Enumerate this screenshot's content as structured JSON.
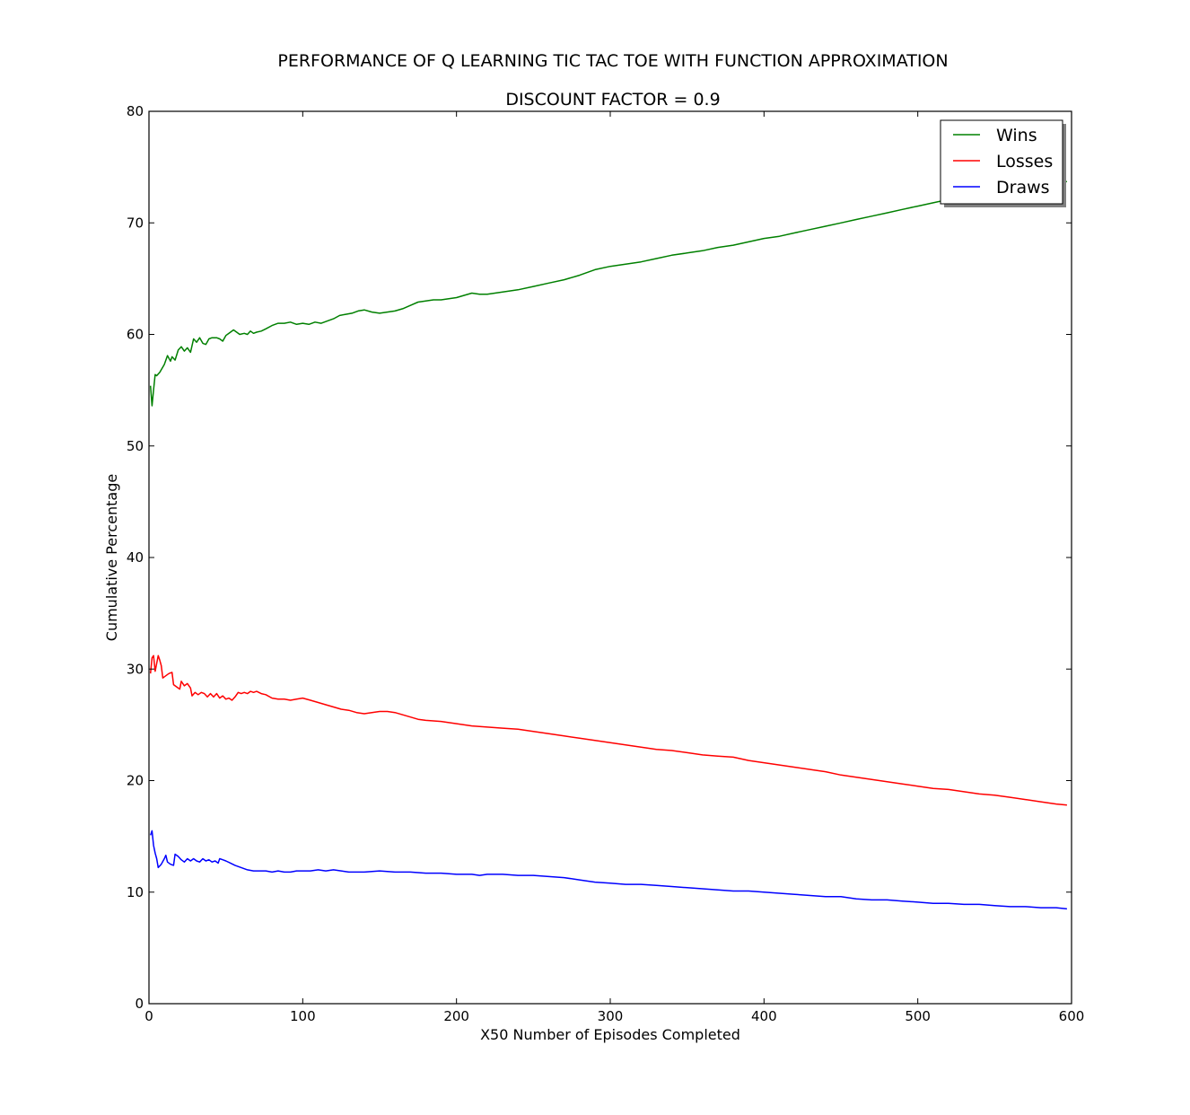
{
  "chart_data": {
    "type": "line",
    "title": "PERFORMANCE OF Q LEARNING TIC TAC TOE WITH FUNCTION APPROXIMATION",
    "subtitle": "DISCOUNT FACTOR =  0.9",
    "xlabel": "X50 Number of Episodes Completed",
    "ylabel": "Cumulative Percentage",
    "xlim": [
      0,
      600
    ],
    "ylim": [
      0,
      80
    ],
    "xticks": [
      0,
      100,
      200,
      300,
      400,
      500,
      600
    ],
    "yticks": [
      0,
      10,
      20,
      30,
      40,
      50,
      60,
      70,
      80
    ],
    "grid": false,
    "legend": "top-right",
    "series": [
      {
        "name": "Wins",
        "color": "#008000",
        "points": [
          [
            1,
            55.4
          ],
          [
            2,
            53.6
          ],
          [
            3,
            55.0
          ],
          [
            4,
            56.4
          ],
          [
            5,
            56.3
          ],
          [
            7,
            56.6
          ],
          [
            10,
            57.3
          ],
          [
            12,
            58.1
          ],
          [
            14,
            57.6
          ],
          [
            15,
            58.0
          ],
          [
            17,
            57.7
          ],
          [
            19,
            58.6
          ],
          [
            21,
            58.9
          ],
          [
            23,
            58.5
          ],
          [
            25,
            58.8
          ],
          [
            27,
            58.4
          ],
          [
            29,
            59.6
          ],
          [
            31,
            59.3
          ],
          [
            33,
            59.7
          ],
          [
            35,
            59.2
          ],
          [
            37,
            59.1
          ],
          [
            39,
            59.6
          ],
          [
            41,
            59.7
          ],
          [
            44,
            59.7
          ],
          [
            46,
            59.6
          ],
          [
            48,
            59.4
          ],
          [
            50,
            59.9
          ],
          [
            53,
            60.2
          ],
          [
            55,
            60.4
          ],
          [
            57,
            60.2
          ],
          [
            59,
            60.0
          ],
          [
            62,
            60.1
          ],
          [
            64,
            60.0
          ],
          [
            66,
            60.3
          ],
          [
            68,
            60.1
          ],
          [
            70,
            60.2
          ],
          [
            73,
            60.3
          ],
          [
            76,
            60.5
          ],
          [
            80,
            60.8
          ],
          [
            84,
            61.0
          ],
          [
            88,
            61.0
          ],
          [
            92,
            61.1
          ],
          [
            96,
            60.9
          ],
          [
            100,
            61.0
          ],
          [
            104,
            60.9
          ],
          [
            108,
            61.1
          ],
          [
            112,
            61.0
          ],
          [
            116,
            61.2
          ],
          [
            120,
            61.4
          ],
          [
            124,
            61.7
          ],
          [
            128,
            61.8
          ],
          [
            132,
            61.9
          ],
          [
            136,
            62.1
          ],
          [
            140,
            62.2
          ],
          [
            145,
            62.0
          ],
          [
            150,
            61.9
          ],
          [
            155,
            62.0
          ],
          [
            160,
            62.1
          ],
          [
            165,
            62.3
          ],
          [
            170,
            62.6
          ],
          [
            175,
            62.9
          ],
          [
            180,
            63.0
          ],
          [
            185,
            63.1
          ],
          [
            190,
            63.1
          ],
          [
            195,
            63.2
          ],
          [
            200,
            63.3
          ],
          [
            205,
            63.5
          ],
          [
            210,
            63.7
          ],
          [
            215,
            63.6
          ],
          [
            220,
            63.6
          ],
          [
            225,
            63.7
          ],
          [
            230,
            63.8
          ],
          [
            240,
            64.0
          ],
          [
            250,
            64.3
          ],
          [
            260,
            64.6
          ],
          [
            270,
            64.9
          ],
          [
            280,
            65.3
          ],
          [
            290,
            65.8
          ],
          [
            300,
            66.1
          ],
          [
            310,
            66.3
          ],
          [
            320,
            66.5
          ],
          [
            330,
            66.8
          ],
          [
            340,
            67.1
          ],
          [
            350,
            67.3
          ],
          [
            360,
            67.5
          ],
          [
            370,
            67.8
          ],
          [
            380,
            68.0
          ],
          [
            390,
            68.3
          ],
          [
            400,
            68.6
          ],
          [
            410,
            68.8
          ],
          [
            420,
            69.1
          ],
          [
            430,
            69.4
          ],
          [
            440,
            69.7
          ],
          [
            450,
            70.0
          ],
          [
            460,
            70.3
          ],
          [
            470,
            70.6
          ],
          [
            480,
            70.9
          ],
          [
            490,
            71.2
          ],
          [
            500,
            71.5
          ],
          [
            510,
            71.8
          ],
          [
            520,
            72.1
          ],
          [
            530,
            72.3
          ],
          [
            540,
            72.6
          ],
          [
            550,
            72.8
          ],
          [
            560,
            73.0
          ],
          [
            570,
            73.2
          ],
          [
            580,
            73.4
          ],
          [
            590,
            73.6
          ],
          [
            597,
            73.7
          ]
        ]
      },
      {
        "name": "Losses",
        "color": "#ff0000",
        "points": [
          [
            1,
            29.6
          ],
          [
            2,
            31.0
          ],
          [
            3,
            31.2
          ],
          [
            4,
            29.8
          ],
          [
            5,
            30.5
          ],
          [
            6,
            31.2
          ],
          [
            7,
            30.8
          ],
          [
            8,
            30.3
          ],
          [
            9,
            29.2
          ],
          [
            11,
            29.4
          ],
          [
            13,
            29.6
          ],
          [
            15,
            29.7
          ],
          [
            16,
            28.6
          ],
          [
            18,
            28.4
          ],
          [
            20,
            28.2
          ],
          [
            21,
            28.9
          ],
          [
            23,
            28.5
          ],
          [
            25,
            28.7
          ],
          [
            27,
            28.3
          ],
          [
            28,
            27.6
          ],
          [
            30,
            27.9
          ],
          [
            32,
            27.7
          ],
          [
            34,
            27.9
          ],
          [
            36,
            27.8
          ],
          [
            38,
            27.5
          ],
          [
            40,
            27.8
          ],
          [
            42,
            27.5
          ],
          [
            44,
            27.8
          ],
          [
            46,
            27.4
          ],
          [
            48,
            27.6
          ],
          [
            50,
            27.3
          ],
          [
            52,
            27.4
          ],
          [
            54,
            27.2
          ],
          [
            56,
            27.5
          ],
          [
            58,
            27.9
          ],
          [
            60,
            27.8
          ],
          [
            62,
            27.9
          ],
          [
            64,
            27.8
          ],
          [
            66,
            28.0
          ],
          [
            68,
            27.9
          ],
          [
            70,
            28.0
          ],
          [
            73,
            27.8
          ],
          [
            76,
            27.7
          ],
          [
            80,
            27.4
          ],
          [
            84,
            27.3
          ],
          [
            88,
            27.3
          ],
          [
            92,
            27.2
          ],
          [
            96,
            27.3
          ],
          [
            100,
            27.4
          ],
          [
            105,
            27.2
          ],
          [
            110,
            27.0
          ],
          [
            115,
            26.8
          ],
          [
            120,
            26.6
          ],
          [
            125,
            26.4
          ],
          [
            130,
            26.3
          ],
          [
            135,
            26.1
          ],
          [
            140,
            26.0
          ],
          [
            145,
            26.1
          ],
          [
            150,
            26.2
          ],
          [
            155,
            26.2
          ],
          [
            160,
            26.1
          ],
          [
            165,
            25.9
          ],
          [
            170,
            25.7
          ],
          [
            175,
            25.5
          ],
          [
            180,
            25.4
          ],
          [
            190,
            25.3
          ],
          [
            200,
            25.1
          ],
          [
            210,
            24.9
          ],
          [
            220,
            24.8
          ],
          [
            230,
            24.7
          ],
          [
            240,
            24.6
          ],
          [
            250,
            24.4
          ],
          [
            260,
            24.2
          ],
          [
            270,
            24.0
          ],
          [
            280,
            23.8
          ],
          [
            290,
            23.6
          ],
          [
            300,
            23.4
          ],
          [
            310,
            23.2
          ],
          [
            320,
            23.0
          ],
          [
            330,
            22.8
          ],
          [
            340,
            22.7
          ],
          [
            350,
            22.5
          ],
          [
            360,
            22.3
          ],
          [
            370,
            22.2
          ],
          [
            380,
            22.1
          ],
          [
            390,
            21.8
          ],
          [
            400,
            21.6
          ],
          [
            410,
            21.4
          ],
          [
            420,
            21.2
          ],
          [
            430,
            21.0
          ],
          [
            440,
            20.8
          ],
          [
            450,
            20.5
          ],
          [
            460,
            20.3
          ],
          [
            470,
            20.1
          ],
          [
            480,
            19.9
          ],
          [
            490,
            19.7
          ],
          [
            500,
            19.5
          ],
          [
            510,
            19.3
          ],
          [
            520,
            19.2
          ],
          [
            530,
            19.0
          ],
          [
            540,
            18.8
          ],
          [
            550,
            18.7
          ],
          [
            560,
            18.5
          ],
          [
            570,
            18.3
          ],
          [
            580,
            18.1
          ],
          [
            590,
            17.9
          ],
          [
            597,
            17.8
          ]
        ]
      },
      {
        "name": "Draws",
        "color": "#0000ff",
        "points": [
          [
            1,
            15.1
          ],
          [
            2,
            15.5
          ],
          [
            3,
            14.2
          ],
          [
            4,
            13.5
          ],
          [
            5,
            13.0
          ],
          [
            6,
            12.2
          ],
          [
            8,
            12.5
          ],
          [
            10,
            13.0
          ],
          [
            11,
            13.3
          ],
          [
            12,
            12.7
          ],
          [
            14,
            12.5
          ],
          [
            16,
            12.4
          ],
          [
            17,
            13.4
          ],
          [
            19,
            13.2
          ],
          [
            21,
            12.9
          ],
          [
            23,
            12.7
          ],
          [
            25,
            13.0
          ],
          [
            27,
            12.8
          ],
          [
            29,
            13.0
          ],
          [
            31,
            12.8
          ],
          [
            33,
            12.7
          ],
          [
            35,
            13.0
          ],
          [
            37,
            12.8
          ],
          [
            39,
            12.9
          ],
          [
            41,
            12.7
          ],
          [
            43,
            12.8
          ],
          [
            45,
            12.6
          ],
          [
            46,
            13.0
          ],
          [
            48,
            12.9
          ],
          [
            50,
            12.8
          ],
          [
            53,
            12.6
          ],
          [
            56,
            12.4
          ],
          [
            60,
            12.2
          ],
          [
            64,
            12.0
          ],
          [
            68,
            11.9
          ],
          [
            72,
            11.9
          ],
          [
            76,
            11.9
          ],
          [
            80,
            11.8
          ],
          [
            84,
            11.9
          ],
          [
            88,
            11.8
          ],
          [
            92,
            11.8
          ],
          [
            96,
            11.9
          ],
          [
            100,
            11.9
          ],
          [
            105,
            11.9
          ],
          [
            110,
            12.0
          ],
          [
            115,
            11.9
          ],
          [
            120,
            12.0
          ],
          [
            125,
            11.9
          ],
          [
            130,
            11.8
          ],
          [
            140,
            11.8
          ],
          [
            150,
            11.9
          ],
          [
            160,
            11.8
          ],
          [
            170,
            11.8
          ],
          [
            180,
            11.7
          ],
          [
            190,
            11.7
          ],
          [
            200,
            11.6
          ],
          [
            210,
            11.6
          ],
          [
            215,
            11.5
          ],
          [
            220,
            11.6
          ],
          [
            230,
            11.6
          ],
          [
            240,
            11.5
          ],
          [
            250,
            11.5
          ],
          [
            260,
            11.4
          ],
          [
            270,
            11.3
          ],
          [
            280,
            11.1
          ],
          [
            290,
            10.9
          ],
          [
            300,
            10.8
          ],
          [
            310,
            10.7
          ],
          [
            320,
            10.7
          ],
          [
            330,
            10.6
          ],
          [
            340,
            10.5
          ],
          [
            350,
            10.4
          ],
          [
            360,
            10.3
          ],
          [
            370,
            10.2
          ],
          [
            380,
            10.1
          ],
          [
            390,
            10.1
          ],
          [
            400,
            10.0
          ],
          [
            410,
            9.9
          ],
          [
            420,
            9.8
          ],
          [
            430,
            9.7
          ],
          [
            440,
            9.6
          ],
          [
            450,
            9.6
          ],
          [
            460,
            9.4
          ],
          [
            470,
            9.3
          ],
          [
            480,
            9.3
          ],
          [
            490,
            9.2
          ],
          [
            500,
            9.1
          ],
          [
            510,
            9.0
          ],
          [
            520,
            9.0
          ],
          [
            530,
            8.9
          ],
          [
            540,
            8.9
          ],
          [
            550,
            8.8
          ],
          [
            560,
            8.7
          ],
          [
            570,
            8.7
          ],
          [
            580,
            8.6
          ],
          [
            590,
            8.6
          ],
          [
            597,
            8.5
          ]
        ]
      }
    ]
  }
}
